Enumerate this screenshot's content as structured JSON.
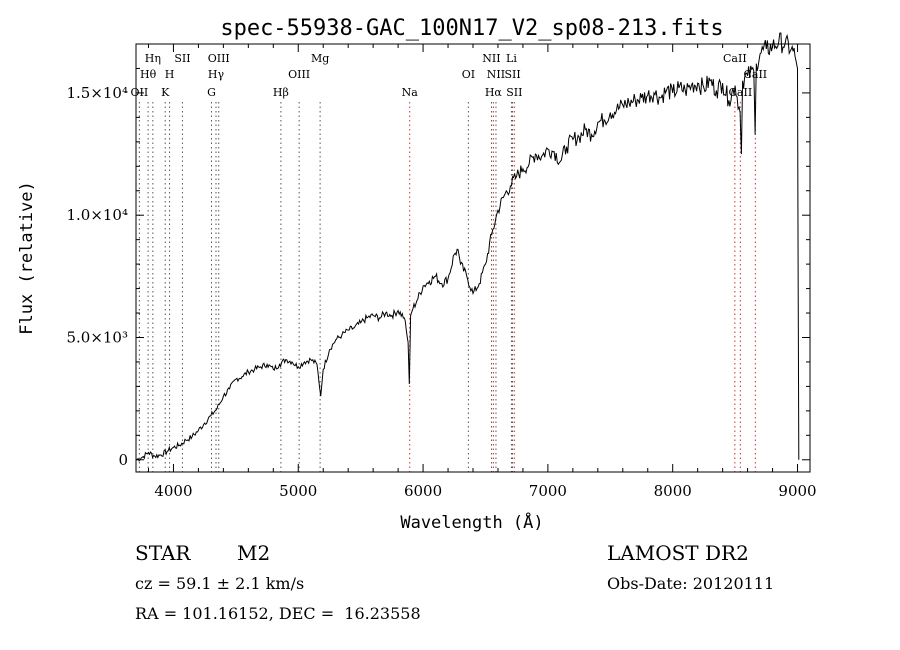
{
  "chart_data": {
    "type": "line",
    "title": "spec-55938-GAC_100N17_V2_sp08-213.fits",
    "xlabel": "Wavelength (Å)",
    "ylabel": "Flux (relative)",
    "xlim": [
      3700,
      9100
    ],
    "ylim": [
      -500,
      17000
    ],
    "xticks": [
      {
        "value": 4000,
        "label": "4000"
      },
      {
        "value": 5000,
        "label": "5000"
      },
      {
        "value": 6000,
        "label": "6000"
      },
      {
        "value": 7000,
        "label": "7000"
      },
      {
        "value": 8000,
        "label": "8000"
      },
      {
        "value": 9000,
        "label": "9000"
      }
    ],
    "yticks": [
      {
        "value": 0,
        "label": "0"
      },
      {
        "value": 5000,
        "label": "5.0×10³"
      },
      {
        "value": 10000,
        "label": "1.0×10⁴"
      },
      {
        "value": 15000,
        "label": "1.5×10⁴"
      }
    ],
    "grid": false,
    "series": [
      {
        "color": "#000000",
        "x": [
          3700,
          3750,
          3800,
          3850,
          3900,
          3950,
          4000,
          4050,
          4100,
          4150,
          4200,
          4250,
          4300,
          4350,
          4400,
          4450,
          4500,
          4550,
          4600,
          4650,
          4700,
          4750,
          4800,
          4850,
          4900,
          4950,
          5000,
          5050,
          5100,
          5150,
          5180,
          5200,
          5250,
          5300,
          5350,
          5400,
          5450,
          5500,
          5550,
          5600,
          5650,
          5700,
          5750,
          5800,
          5850,
          5880,
          5890,
          5900,
          5920,
          5950,
          6000,
          6050,
          6100,
          6150,
          6200,
          6250,
          6280,
          6300,
          6350,
          6400,
          6450,
          6500,
          6550,
          6600,
          6650,
          6700,
          6750,
          6800,
          6850,
          6900,
          6950,
          7000,
          7050,
          7100,
          7150,
          7200,
          7250,
          7300,
          7350,
          7400,
          7450,
          7500,
          7550,
          7600,
          7650,
          7700,
          7750,
          7800,
          7850,
          7900,
          7950,
          8000,
          8050,
          8100,
          8150,
          8200,
          8250,
          8300,
          8350,
          8400,
          8450,
          8500,
          8540,
          8550,
          8560,
          8600,
          8650,
          8660,
          8670,
          8700,
          8750,
          8800,
          8850,
          8900,
          8950,
          8980,
          9000,
          9010
        ],
        "y": [
          0,
          100,
          300,
          150,
          200,
          350,
          500,
          600,
          800,
          950,
          1200,
          1500,
          1800,
          2100,
          2600,
          2900,
          3300,
          3400,
          3600,
          3700,
          3800,
          3900,
          3700,
          3900,
          4100,
          4000,
          3800,
          4000,
          4100,
          3900,
          2600,
          3700,
          4500,
          4900,
          5100,
          5300,
          5400,
          5600,
          5800,
          5900,
          5800,
          6000,
          5900,
          6100,
          5800,
          4800,
          3100,
          5900,
          6200,
          6500,
          7100,
          7300,
          7500,
          7200,
          7400,
          8400,
          8600,
          8000,
          7500,
          6800,
          7200,
          8000,
          9200,
          10200,
          10800,
          11200,
          11600,
          11900,
          12100,
          12500,
          12400,
          12700,
          12600,
          12200,
          12800,
          13100,
          13200,
          13500,
          13300,
          13800,
          13900,
          14200,
          14300,
          14500,
          14600,
          14700,
          14800,
          14900,
          15000,
          14800,
          15100,
          15000,
          15200,
          15100,
          15300,
          15400,
          15200,
          15500,
          15100,
          15400,
          14700,
          15300,
          14200,
          12500,
          15500,
          15700,
          15900,
          13300,
          16200,
          16600,
          16800,
          16900,
          17100,
          17000,
          16800,
          16500,
          16000,
          0
        ]
      }
    ],
    "line_markers": [
      {
        "label": "Hη",
        "row": 0,
        "wl": 3835,
        "color": "#555555"
      },
      {
        "label": "Hθ",
        "row": 1,
        "wl": 3797,
        "color": "#555555"
      },
      {
        "label": "OII",
        "row": 2,
        "wl": 3727,
        "color": "#555555"
      },
      {
        "label": "SII",
        "row": 0,
        "wl": 4072,
        "color": "#555555"
      },
      {
        "label": "H",
        "row": 1,
        "wl": 3969,
        "color": "#555555"
      },
      {
        "label": "K",
        "row": 2,
        "wl": 3934,
        "color": "#555555"
      },
      {
        "label": "OIII",
        "row": 0,
        "wl": 4363,
        "color": "#555555"
      },
      {
        "label": "Hγ",
        "row": 1,
        "wl": 4341,
        "color": "#555555"
      },
      {
        "label": "G",
        "row": 2,
        "wl": 4305,
        "color": "#555555"
      },
      {
        "label": "Hβ",
        "row": 2,
        "wl": 4861,
        "color": "#555555"
      },
      {
        "label": "Mg",
        "row": 0,
        "wl": 5175,
        "color": "#555555"
      },
      {
        "label": "OIII",
        "row": 1,
        "wl": 5007,
        "color": "#555555"
      },
      {
        "label": "Na",
        "row": 2,
        "wl": 5893,
        "color": "#cc3333"
      },
      {
        "label": "OI",
        "row": 1,
        "wl": 6363,
        "color": "#555555"
      },
      {
        "label": "NII",
        "row": 0,
        "wl": 6548,
        "color": "#555555"
      },
      {
        "label": "Li",
        "row": 0,
        "wl": 6708,
        "color": "#555555"
      },
      {
        "label": "NII",
        "row": 1,
        "wl": 6584,
        "color": "#555555"
      },
      {
        "label": "SII",
        "row": 1,
        "wl": 6717,
        "color": "#555555"
      },
      {
        "label": "Hα",
        "row": 2,
        "wl": 6563,
        "color": "#cc3333"
      },
      {
        "label": "SII",
        "row": 2,
        "wl": 6731,
        "color": "#cc3333"
      },
      {
        "label": "CaII",
        "row": 0,
        "wl": 8498,
        "color": "#cc3333"
      },
      {
        "label": "CaII",
        "row": 1,
        "wl": 8662,
        "color": "#cc3333"
      },
      {
        "label": "CaII",
        "row": 2,
        "wl": 8542,
        "color": "#cc3333"
      }
    ]
  },
  "info": {
    "object_class": "STAR",
    "subclass": "M2",
    "survey": "LAMOST DR2",
    "cz": "cz = 59.1 ± 2.1 km/s",
    "obs_date": "Obs-Date: 20120111",
    "coords": "RA = 101.16152, DEC =  16.23558"
  }
}
